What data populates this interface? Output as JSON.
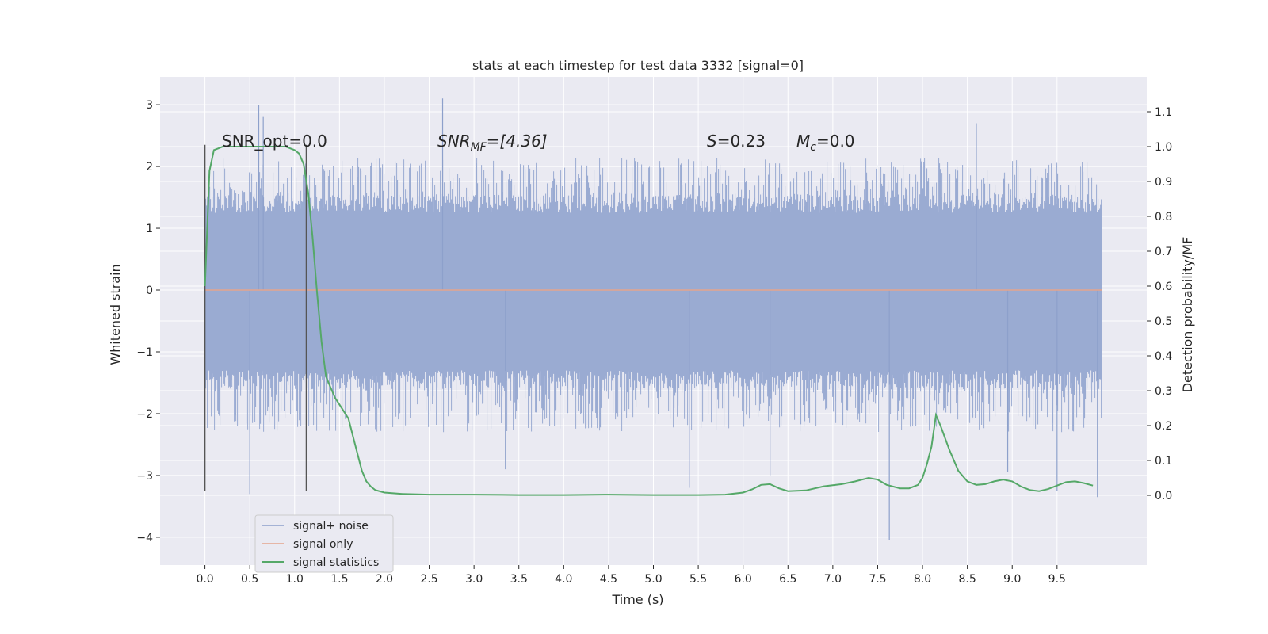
{
  "chart_data": {
    "type": "line",
    "title": "stats at each timestep for test data 3332 [signal=0]",
    "xlabel": "Time (s)",
    "ylabel": "Whitened strain",
    "y2label": "Detection probability/MF",
    "xlim": [
      -0.5,
      10.5
    ],
    "ylim": [
      -4.45,
      3.45
    ],
    "y2lim": [
      -0.2,
      1.2
    ],
    "xticks": [
      0.0,
      0.5,
      1.0,
      1.5,
      2.0,
      2.5,
      3.0,
      3.5,
      4.0,
      4.5,
      5.0,
      5.5,
      6.0,
      6.5,
      7.0,
      7.5,
      8.0,
      8.5,
      9.0,
      9.5
    ],
    "xtick_labels": [
      "0.0",
      "0.5",
      "1.0",
      "1.5",
      "2.0",
      "2.5",
      "3.0",
      "3.5",
      "4.0",
      "4.5",
      "5.0",
      "5.5",
      "6.0",
      "6.5",
      "7.0",
      "7.5",
      "8.0",
      "8.5",
      "9.0",
      "9.5"
    ],
    "yticks": [
      -4,
      -3,
      -2,
      -1,
      0,
      1,
      2,
      3
    ],
    "ytick_labels": [
      "−4",
      "−3",
      "−2",
      "−1",
      "0",
      "1",
      "2",
      "3"
    ],
    "y2ticks": [
      0.0,
      0.1,
      0.2,
      0.3,
      0.4,
      0.5,
      0.6,
      0.7,
      0.8,
      0.9,
      1.0,
      1.1
    ],
    "y2tick_labels": [
      "0.0",
      "0.1",
      "0.2",
      "0.3",
      "0.4",
      "0.5",
      "0.6",
      "0.7",
      "0.8",
      "0.9",
      "1.0",
      "1.1"
    ],
    "grid": true,
    "legend_position": "lower-left",
    "annotations": {
      "snr_opt": "SNR_opt=0.0",
      "snr_mf_prefix": "SNR",
      "snr_mf_sub": "MF",
      "snr_mf_value": "=[4.36]",
      "s_symbol": "S",
      "s_value": "=0.23",
      "mc_symbol": "M",
      "mc_sub": "c",
      "mc_value": "=0.0"
    },
    "vlines": [
      0.0,
      1.13
    ],
    "vline_range": [
      -3.25,
      2.35
    ],
    "noise_band": {
      "start": 0.0,
      "end": 10.0,
      "typical_upper": 1.25,
      "typical_lower": -1.3,
      "sample_spikes": [
        {
          "x": 0.6,
          "y": 3.0
        },
        {
          "x": 0.65,
          "y": 2.8
        },
        {
          "x": 0.5,
          "y": -3.3
        },
        {
          "x": 2.65,
          "y": 3.1
        },
        {
          "x": 3.35,
          "y": -2.9
        },
        {
          "x": 5.4,
          "y": -3.2
        },
        {
          "x": 7.63,
          "y": -4.05
        },
        {
          "x": 8.6,
          "y": 2.7
        },
        {
          "x": 9.95,
          "y": -3.35
        },
        {
          "x": 9.5,
          "y": -3.25
        },
        {
          "x": 6.3,
          "y": -3.0
        },
        {
          "x": 8.95,
          "y": -2.95
        }
      ]
    },
    "series": [
      {
        "name": "signal+ noise",
        "color": "#8da0cb"
      },
      {
        "name": "signal only",
        "color": "#e5a58c",
        "y": 0.0
      },
      {
        "name": "signal statistics",
        "color": "#55a868",
        "axis": "right",
        "x": [
          0.0,
          0.05,
          0.1,
          0.15,
          0.2,
          0.3,
          0.4,
          0.5,
          0.6,
          0.7,
          0.8,
          0.9,
          1.0,
          1.05,
          1.1,
          1.15,
          1.2,
          1.25,
          1.3,
          1.35,
          1.4,
          1.45,
          1.5,
          1.6,
          1.65,
          1.7,
          1.75,
          1.8,
          1.85,
          1.9,
          2.0,
          2.2,
          2.5,
          3.0,
          3.5,
          4.0,
          4.5,
          5.0,
          5.5,
          5.8,
          6.0,
          6.1,
          6.2,
          6.3,
          6.4,
          6.5,
          6.7,
          6.9,
          7.1,
          7.25,
          7.4,
          7.5,
          7.6,
          7.75,
          7.85,
          7.95,
          8.0,
          8.05,
          8.1,
          8.15,
          8.2,
          8.3,
          8.4,
          8.5,
          8.6,
          8.7,
          8.8,
          8.9,
          9.0,
          9.1,
          9.2,
          9.3,
          9.4,
          9.5,
          9.6,
          9.7,
          9.8,
          9.9
        ],
        "y": [
          0.6,
          0.93,
          0.99,
          0.995,
          1.0,
          1.0,
          1.0,
          1.0,
          1.0,
          1.0,
          1.0,
          1.0,
          0.99,
          0.98,
          0.95,
          0.87,
          0.74,
          0.58,
          0.44,
          0.34,
          0.31,
          0.28,
          0.26,
          0.22,
          0.17,
          0.12,
          0.07,
          0.04,
          0.025,
          0.015,
          0.008,
          0.004,
          0.002,
          0.002,
          0.001,
          0.001,
          0.002,
          0.001,
          0.001,
          0.002,
          0.008,
          0.017,
          0.03,
          0.032,
          0.02,
          0.012,
          0.014,
          0.026,
          0.032,
          0.04,
          0.05,
          0.045,
          0.03,
          0.02,
          0.02,
          0.03,
          0.05,
          0.09,
          0.14,
          0.23,
          0.2,
          0.13,
          0.07,
          0.04,
          0.03,
          0.032,
          0.04,
          0.045,
          0.04,
          0.025,
          0.015,
          0.012,
          0.018,
          0.028,
          0.038,
          0.04,
          0.035,
          0.028
        ]
      }
    ]
  }
}
